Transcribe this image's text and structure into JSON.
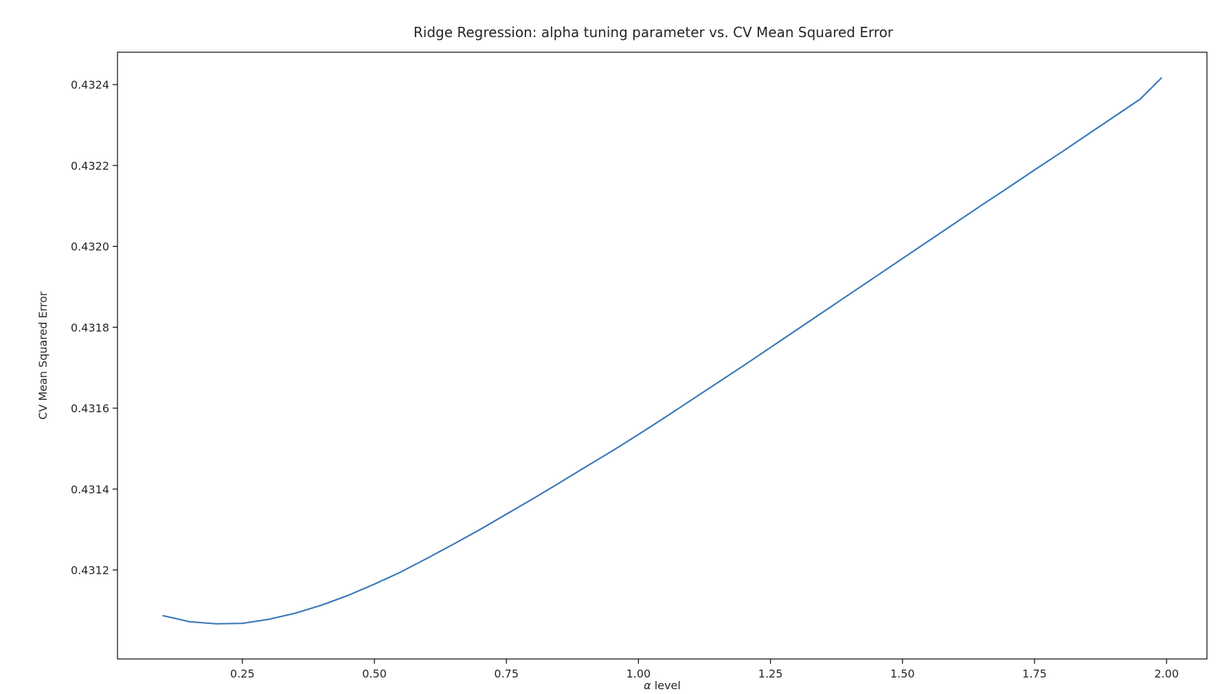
{
  "chart_data": {
    "type": "line",
    "title": "Ridge Regression: alpha tuning parameter vs. CV Mean Squared Error",
    "xlabel_symbol": "α",
    "xlabel_text": " level",
    "ylabel": "CV Mean Squared Error",
    "xlim": [
      0.0135,
      2.0765
    ],
    "ylim": [
      0.43098,
      0.43248
    ],
    "xticks": [
      0.25,
      0.5,
      0.75,
      1.0,
      1.25,
      1.5,
      1.75,
      2.0
    ],
    "xtick_labels": [
      "0.25",
      "0.50",
      "0.75",
      "1.00",
      "1.25",
      "1.50",
      "1.75",
      "2.00"
    ],
    "yticks": [
      0.4312,
      0.4314,
      0.4316,
      0.4318,
      0.432,
      0.4322,
      0.4324
    ],
    "ytick_labels": [
      "0.4312",
      "0.4314",
      "0.4316",
      "0.4318",
      "0.4320",
      "0.4322",
      "0.4324"
    ],
    "grid": false,
    "line_color": "#3a78b9",
    "series": [
      {
        "x": [
          0.1,
          0.15,
          0.2,
          0.25,
          0.3,
          0.35,
          0.4,
          0.45,
          0.5,
          0.55,
          0.6,
          0.65,
          0.7,
          0.75,
          0.8,
          0.85,
          0.9,
          0.95,
          1.0,
          1.05,
          1.1,
          1.15,
          1.2,
          1.25,
          1.3,
          1.35,
          1.4,
          1.45,
          1.5,
          1.55,
          1.6,
          1.65,
          1.7,
          1.75,
          1.8,
          1.85,
          1.9,
          1.95,
          1.99
        ],
        "y": [
          0.431087,
          0.431072,
          0.431067,
          0.431068,
          0.431078,
          0.431093,
          0.431113,
          0.431137,
          0.431165,
          0.431195,
          0.431229,
          0.431264,
          0.4313,
          0.431338,
          0.431376,
          0.431415,
          0.431455,
          0.431494,
          0.431535,
          0.431577,
          0.43162,
          0.431663,
          0.431706,
          0.43175,
          0.431794,
          0.431838,
          0.431882,
          0.431926,
          0.43197,
          0.432014,
          0.432058,
          0.432102,
          0.432145,
          0.432189,
          0.432232,
          0.432276,
          0.43232,
          0.432364,
          0.432416
        ]
      }
    ]
  }
}
